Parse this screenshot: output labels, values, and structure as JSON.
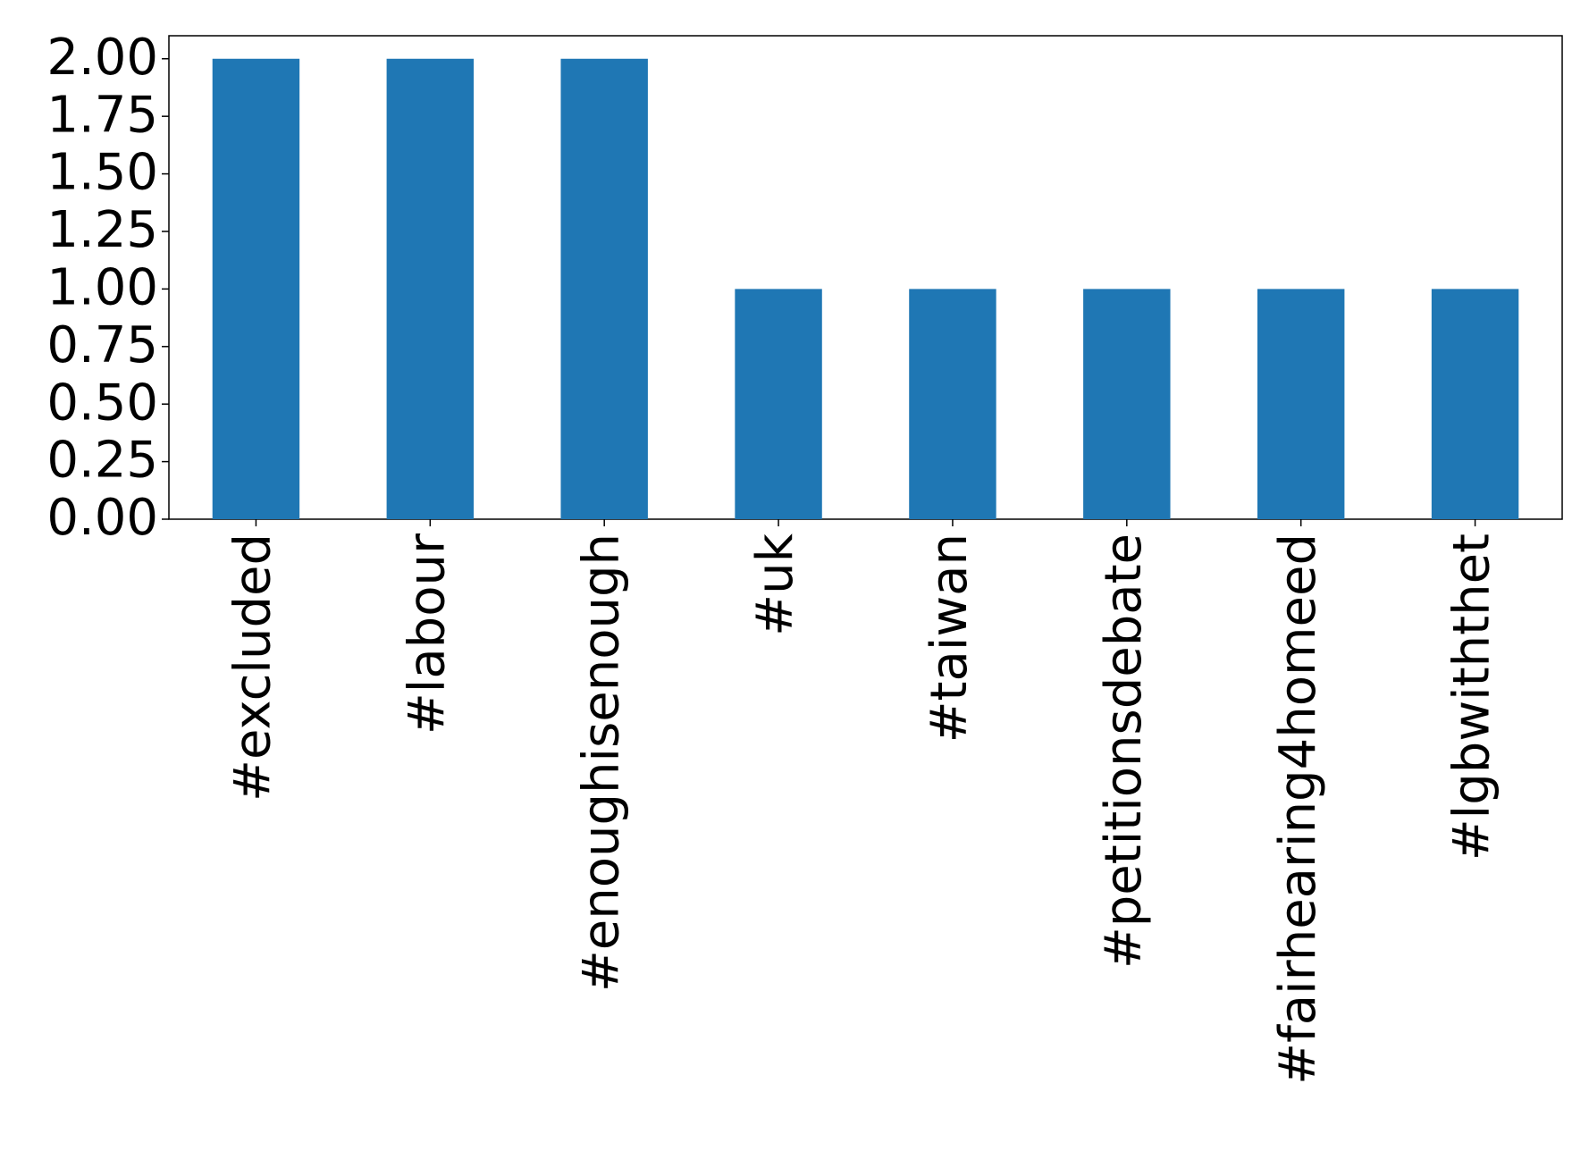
{
  "chart_data": {
    "type": "bar",
    "categories": [
      "#excluded",
      "#labour",
      "#enoughisenough",
      "#uk",
      "#taiwan",
      "#petitionsdebate",
      "#fairhearing4homeed",
      "#lgbwiththet"
    ],
    "values": [
      2,
      2,
      2,
      1,
      1,
      1,
      1,
      1
    ],
    "color": "#1f77b4",
    "ylim": [
      0,
      2.1
    ],
    "yticks": [
      {
        "value": 0,
        "label": "0.00"
      },
      {
        "value": 0.25,
        "label": "0.25"
      },
      {
        "value": 0.5,
        "label": "0.50"
      },
      {
        "value": 0.75,
        "label": "0.75"
      },
      {
        "value": 1,
        "label": "1.00"
      },
      {
        "value": 1.25,
        "label": "1.25"
      },
      {
        "value": 1.5,
        "label": "1.50"
      },
      {
        "value": 1.75,
        "label": "1.75"
      },
      {
        "value": 2,
        "label": "2.00"
      }
    ],
    "grid": false
  }
}
